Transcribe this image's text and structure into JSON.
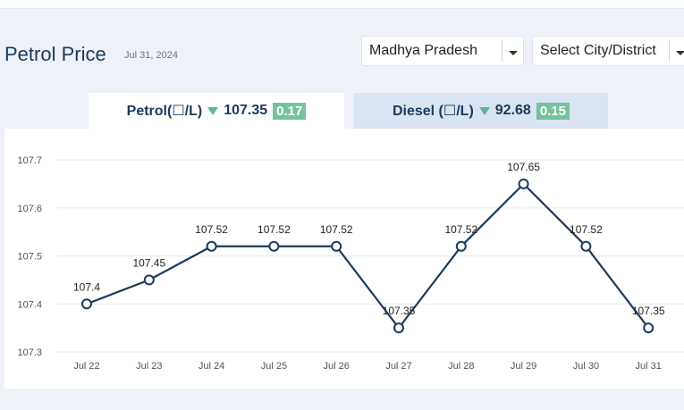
{
  "header": {
    "title": "Petrol Price",
    "date": "Jul 31, 2024"
  },
  "filters": {
    "state": "Madhya Pradesh",
    "city": "Select City/District"
  },
  "tabs": [
    {
      "label": "Petrol(☐/L)",
      "price": "107.35",
      "change": "0.17",
      "trend": "down",
      "active": true
    },
    {
      "label": "Diesel (☐/L)",
      "price": "92.68",
      "change": "0.15",
      "trend": "down",
      "active": false
    }
  ],
  "colors": {
    "line": "#1a3a5c",
    "badge": "#75c29e",
    "grid": "#e6e9ef"
  },
  "chart_data": {
    "type": "line",
    "categories": [
      "Jul 22",
      "Jul 23",
      "Jul 24",
      "Jul 25",
      "Jul 26",
      "Jul 27",
      "Jul 28",
      "Jul 29",
      "Jul 30",
      "Jul 31"
    ],
    "values": [
      107.4,
      107.45,
      107.52,
      107.52,
      107.52,
      107.35,
      107.52,
      107.65,
      107.52,
      107.35
    ],
    "data_labels": [
      "107.4",
      "107.45",
      "107.52",
      "107.52",
      "107.52",
      "107.35",
      "107.52",
      "107.65",
      "107.52",
      "107.35"
    ],
    "y_ticks": [
      "107.3",
      "107.4",
      "107.5",
      "107.6",
      "107.7"
    ],
    "ylim": [
      107.3,
      107.7
    ],
    "title": "",
    "xlabel": "",
    "ylabel": "",
    "grid": true
  }
}
